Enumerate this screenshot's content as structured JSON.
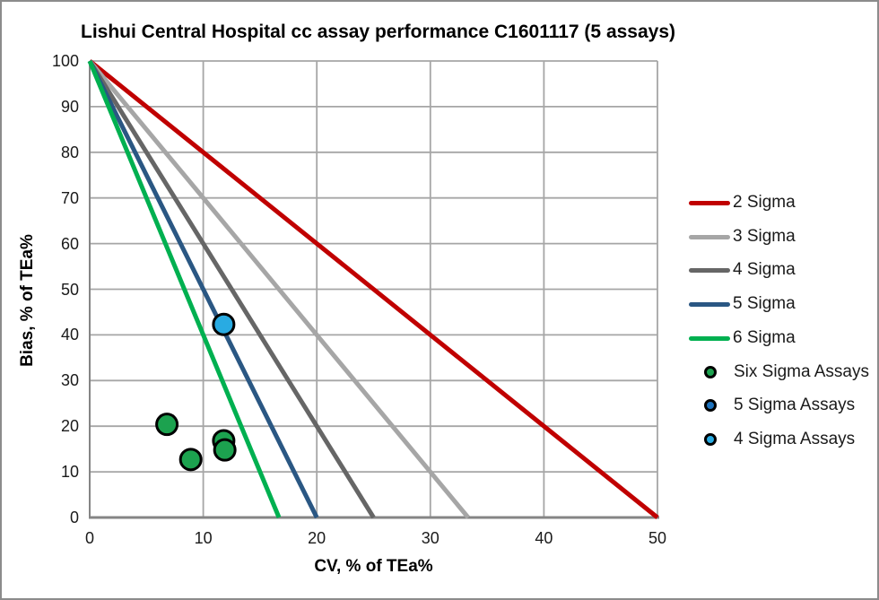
{
  "frame": {
    "background": "#FFFFFF",
    "border_color": "#8C8C8C"
  },
  "chart_data": {
    "type": "scatter",
    "title": "Lishui Central Hospital cc assay performance C1601117 (5 assays)",
    "xlabel": "CV, % of TEa%",
    "ylabel": "Bias, % of TEa%",
    "xlim": [
      0,
      50
    ],
    "ylim": [
      0,
      100
    ],
    "xticks": [
      0,
      10,
      20,
      30,
      40,
      50
    ],
    "yticks": [
      0,
      10,
      20,
      30,
      40,
      50,
      60,
      70,
      80,
      90,
      100
    ],
    "grid": "on",
    "grid_color": "#A6A6A6",
    "axis_line_color": "#858585",
    "legend_position": "right",
    "sigma_lines": [
      {
        "label": "2 Sigma",
        "color": "#C00000",
        "start": [
          0,
          100
        ],
        "x_intercept": 50
      },
      {
        "label": "3 Sigma",
        "color": "#A6A6A6",
        "start": [
          0,
          100
        ],
        "x_intercept": 33.33
      },
      {
        "label": "4 Sigma",
        "color": "#666666",
        "start": [
          0,
          100
        ],
        "x_intercept": 25
      },
      {
        "label": "5 Sigma",
        "color": "#2A5783",
        "start": [
          0,
          100
        ],
        "x_intercept": 20
      },
      {
        "label": "6 Sigma",
        "color": "#00B050",
        "start": [
          0,
          100
        ],
        "x_intercept": 16.67
      }
    ],
    "point_series": [
      {
        "label": "Six Sigma Assays",
        "color": "#1CA24F",
        "points": [
          [
            6.8,
            20.4
          ],
          [
            8.9,
            12.7
          ],
          [
            11.8,
            16.8
          ],
          [
            11.9,
            14.8
          ]
        ]
      },
      {
        "label": "5 Sigma Assays",
        "color": "#1E73BE",
        "points": []
      },
      {
        "label": "4 Sigma Assays",
        "color": "#29ABE2",
        "points": [
          [
            11.8,
            42.3
          ]
        ]
      }
    ]
  }
}
